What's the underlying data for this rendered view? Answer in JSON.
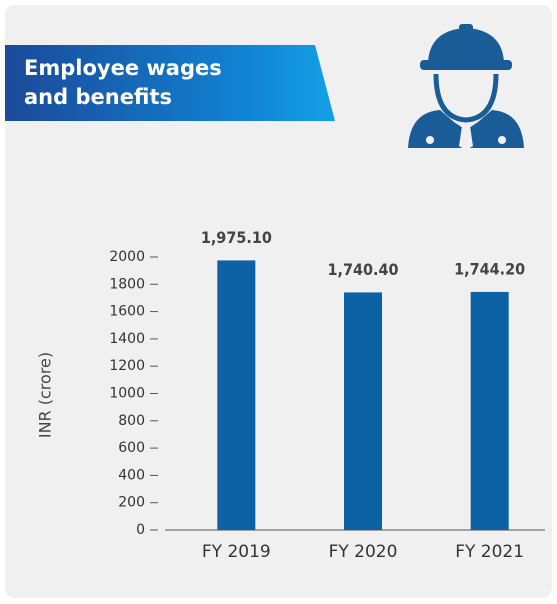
{
  "chart_data": {
    "type": "bar",
    "title": "Employee wages and benefits",
    "y_label": "INR (crore)",
    "categories": [
      "FY 2019",
      "FY 2020",
      "FY 2021"
    ],
    "values": [
      1975.1,
      1740.4,
      1744.2
    ],
    "value_labels": [
      "1,975.10",
      "1,740.40",
      "1,744.20"
    ],
    "color": "#0d62a6",
    "ylim": [
      0,
      2000
    ],
    "yticks": [
      0,
      200,
      400,
      600,
      800,
      1000,
      1200,
      1400,
      1600,
      1800,
      2000
    ],
    "grid": false
  }
}
